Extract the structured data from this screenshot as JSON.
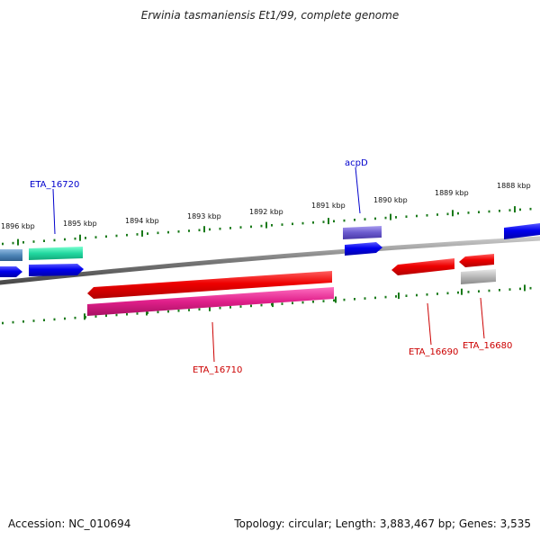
{
  "title": "Erwinia tasmaniensis Et1/99, complete genome",
  "footer": {
    "accession": "Accession: NC_010694",
    "summary": "Topology: circular; Length: 3,883,467 bp; Genes: 3,535"
  },
  "ticks": [
    {
      "label": "1888 kbp"
    },
    {
      "label": "1889 kbp"
    },
    {
      "label": "1890 kbp"
    },
    {
      "label": "1891 kbp"
    },
    {
      "label": "1892 kbp"
    },
    {
      "label": "1893 kbp"
    },
    {
      "label": "1894 kbp"
    },
    {
      "label": "1895 kbp"
    },
    {
      "label": "1896 kbp"
    }
  ],
  "gene_labels": [
    {
      "name": "ETA_16720",
      "color": "#0000cc"
    },
    {
      "name": "acpD",
      "color": "#0000cc"
    },
    {
      "name": "ETA_16710",
      "color": "#cc0000"
    },
    {
      "name": "ETA_16690",
      "color": "#cc0000"
    },
    {
      "name": "ETA_16680",
      "color": "#cc0000"
    }
  ],
  "colors": {
    "backbone": "#7a7a7a",
    "tick": "#1a7a1a",
    "forward_cds": "#0000ee",
    "reverse_cds": "#ee0000",
    "teal_feature": "#22d8a0",
    "steel_feature": "#4f86b8",
    "violet_feature": "#6a5acd",
    "magenta_feature": "#e0208a",
    "grey_feature": "#b8b8b8"
  }
}
